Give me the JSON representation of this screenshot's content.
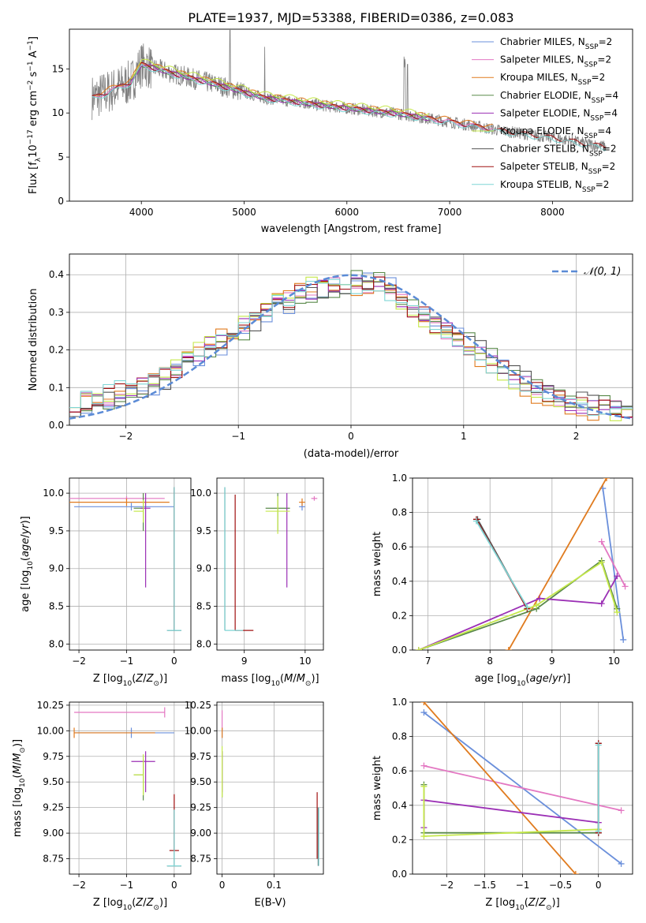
{
  "figure_title": "PLATE=1937, MJD=53388, FIBERID=0386, z=0.083",
  "colors": {
    "Chabrier MILES": "#6a8fdb",
    "Salpeter MILES": "#e377c2",
    "Kroupa MILES": "#e07b1f",
    "Chabrier ELODIE": "#5a8a4a",
    "Salpeter ELODIE": "#9b2fb5",
    "Kroupa ELODIE": "#c5e84a",
    "Chabrier STELIB": "#555555",
    "Salpeter STELIB": "#a01010",
    "Kroupa STELIB": "#7fd6d6",
    "data": "#808080"
  },
  "chart_data": [
    {
      "id": "spectrum",
      "type": "line",
      "xlabel": "wavelength [Angstrom, rest frame]",
      "ylabel_parts": [
        "Flux [f",
        "λ",
        "10",
        "−17",
        " erg cm",
        "−2",
        " s",
        "−1",
        " A",
        "−1",
        "]"
      ],
      "xlim": [
        3300,
        8780
      ],
      "ylim": [
        0,
        19.5
      ],
      "xticks": [
        4000,
        5000,
        6000,
        7000,
        8000
      ],
      "yticks": [
        0,
        5,
        10,
        15
      ],
      "legend_position": "upper right",
      "legend": [
        {
          "model": "Chabrier MILES",
          "nssp": "2",
          "sub": "SSP"
        },
        {
          "model": "Salpeter MILES",
          "nssp": "2",
          "sub": "SSP"
        },
        {
          "model": "Kroupa MILES",
          "nssp": "2",
          "sub": "SSP"
        },
        {
          "model": "Chabrier ELODIE",
          "nssp": "4",
          "sub": "SSP"
        },
        {
          "model": "Salpeter ELODIE",
          "nssp": "4",
          "sub": "SSP"
        },
        {
          "model": "Kroupa ELODIE",
          "nssp": "4",
          "sub": "SSP"
        },
        {
          "model": "Chabrier STELIB",
          "nssp": "2",
          "sub": "SSP"
        },
        {
          "model": "Salpeter STELIB",
          "nssp": "2",
          "sub": "SSP"
        },
        {
          "model": "Kroupa STELIB",
          "nssp": "2",
          "sub": "SSP"
        }
      ],
      "approx_continuum": {
        "wavelength": [
          3550,
          3700,
          3900,
          4000,
          4300,
          4800,
          5200,
          5800,
          6500,
          7000,
          7500,
          8000,
          8500
        ],
        "flux": [
          11.8,
          12.5,
          13.5,
          15.5,
          14.5,
          13.0,
          11.7,
          10.8,
          9.9,
          9.0,
          8.0,
          7.2,
          6.2
        ]
      }
    },
    {
      "id": "residuals",
      "type": "step",
      "xlabel": "(data-model)/error",
      "ylabel": "Normed distribution",
      "xlim": [
        -2.5,
        2.5
      ],
      "ylim": [
        0,
        0.455
      ],
      "xticks": [
        -2,
        -1,
        0,
        1,
        2
      ],
      "yticks": [
        0.0,
        0.1,
        0.2,
        0.3,
        0.4
      ],
      "legend": "𝒩(0, 1)",
      "legend_position": "upper right",
      "gaussian": {
        "mu": 0,
        "sigma": 1
      },
      "bin_width": 0.1,
      "base_hist": [
        0.06,
        0.065,
        0.07,
        0.075,
        0.085,
        0.095,
        0.105,
        0.115,
        0.13,
        0.15,
        0.165,
        0.19,
        0.21,
        0.22,
        0.24,
        0.26,
        0.28,
        0.3,
        0.32,
        0.33,
        0.35,
        0.36,
        0.365,
        0.37,
        0.375,
        0.38,
        0.375,
        0.38,
        0.36,
        0.33,
        0.31,
        0.29,
        0.27,
        0.25,
        0.23,
        0.21,
        0.19,
        0.17,
        0.15,
        0.13,
        0.11,
        0.095,
        0.08,
        0.07,
        0.06,
        0.055,
        0.05,
        0.045,
        0.04,
        0.035
      ]
    },
    {
      "id": "age-vs-Z",
      "type": "errorbar",
      "xlabel": "Z [log10(Z/Z☉)]",
      "ylabel": "age [log10(age/yr)]",
      "xlim": [
        -2.2,
        0.35
      ],
      "ylim": [
        7.92,
        10.2
      ],
      "xticks": [
        -2,
        -1,
        0
      ],
      "yticks": [
        8.0,
        8.5,
        9.0,
        9.5,
        10.0
      ],
      "points": [
        {
          "model": "Chabrier MILES",
          "x": -0.9,
          "xerr": [
            1.2,
            0.9
          ],
          "y": 9.82,
          "yerr": [
            0.05,
            0.05
          ]
        },
        {
          "model": "Salpeter MILES",
          "x": -1.0,
          "xerr": [
            1.2,
            0.8
          ],
          "y": 9.93,
          "yerr": [
            0.03,
            0.03
          ]
        },
        {
          "model": "Kroupa MILES",
          "x": -1.0,
          "xerr": [
            1.2,
            0.9
          ],
          "y": 9.88,
          "yerr": [
            0.05,
            0.05
          ]
        },
        {
          "model": "Chabrier ELODIE",
          "x": -0.65,
          "xerr": [
            0.2,
            0.0
          ],
          "y": 9.8,
          "yerr": [
            0.3,
            0.2
          ]
        },
        {
          "model": "Salpeter ELODIE",
          "x": -0.6,
          "xerr": [
            0.1,
            0.1
          ],
          "y": 9.8,
          "yerr": [
            1.05,
            0.2
          ]
        },
        {
          "model": "Kroupa ELODIE",
          "x": -0.65,
          "xerr": [
            0.2,
            0.0
          ],
          "y": 9.76,
          "yerr": [
            0.15,
            0.15
          ]
        },
        {
          "model": "Chabrier STELIB",
          "x": 0.0,
          "xerr": [
            0.15,
            0.15
          ],
          "y": 8.18,
          "yerr": [
            0.0,
            1.9
          ]
        },
        {
          "model": "Salpeter STELIB",
          "x": 0.0,
          "xerr": [
            0.0,
            0.0
          ],
          "y": 8.18,
          "yerr": [
            0.0,
            1.9
          ]
        },
        {
          "model": "Kroupa STELIB",
          "x": 0.0,
          "xerr": [
            0.15,
            0.15
          ],
          "y": 8.18,
          "yerr": [
            0.0,
            1.9
          ]
        }
      ]
    },
    {
      "id": "age-vs-mass",
      "type": "errorbar",
      "xlabel": "mass [log10(M/M☉)]",
      "ylabel": "",
      "xlim": [
        8.55,
        10.3
      ],
      "ylim": [
        7.92,
        10.2
      ],
      "xticks": [
        9,
        10
      ],
      "yticks": [
        8.0,
        8.5,
        9.0,
        9.5,
        10.0
      ],
      "points": [
        {
          "model": "Chabrier MILES",
          "x": 9.95,
          "xerr": [
            0.05,
            0.05
          ],
          "y": 9.82,
          "yerr": [
            0.05,
            0.05
          ]
        },
        {
          "model": "Salpeter MILES",
          "x": 10.15,
          "xerr": [
            0.05,
            0.05
          ],
          "y": 9.93,
          "yerr": [
            0.03,
            0.03
          ]
        },
        {
          "model": "Kroupa MILES",
          "x": 9.95,
          "xerr": [
            0.05,
            0.05
          ],
          "y": 9.88,
          "yerr": [
            0.05,
            0.05
          ]
        },
        {
          "model": "Chabrier ELODIE",
          "x": 9.55,
          "xerr": [
            0.2,
            0.2
          ],
          "y": 9.8,
          "yerr": [
            0.3,
            0.2
          ]
        },
        {
          "model": "Salpeter ELODIE",
          "x": 9.7,
          "xerr": [
            0.0,
            0.0
          ],
          "y": 9.8,
          "yerr": [
            1.05,
            0.2
          ]
        },
        {
          "model": "Kroupa ELODIE",
          "x": 9.55,
          "xerr": [
            0.2,
            0.2
          ],
          "y": 9.76,
          "yerr": [
            0.3,
            0.2
          ]
        },
        {
          "model": "Chabrier STELIB",
          "x": 8.68,
          "xerr": [
            0.0,
            0.0
          ],
          "y": 8.18,
          "yerr": [
            0.0,
            1.9
          ]
        },
        {
          "model": "Salpeter STELIB",
          "x": 8.85,
          "xerr": [
            0.0,
            0.3
          ],
          "y": 8.18,
          "yerr": [
            0.0,
            1.8
          ]
        },
        {
          "model": "Kroupa STELIB",
          "x": 8.68,
          "xerr": [
            0.0,
            0.3
          ],
          "y": 8.18,
          "yerr": [
            0.0,
            1.9
          ]
        }
      ]
    },
    {
      "id": "weight-vs-age",
      "type": "line",
      "xlabel": "age [log10(age/yr)]",
      "ylabel": "mass weight",
      "xlim": [
        6.75,
        10.3
      ],
      "ylim": [
        0,
        1.0
      ],
      "xticks": [
        7,
        8,
        9,
        10
      ],
      "yticks": [
        0.0,
        0.2,
        0.4,
        0.6,
        0.8,
        1.0
      ],
      "series": [
        {
          "model": "Chabrier MILES",
          "x": [
            9.82,
            10.15
          ],
          "y": [
            0.94,
            0.06
          ]
        },
        {
          "model": "Salpeter MILES",
          "x": [
            9.8,
            10.18
          ],
          "y": [
            0.63,
            0.37
          ]
        },
        {
          "model": "Kroupa MILES",
          "x": [
            8.3,
            9.88
          ],
          "y": [
            0.0,
            1.0
          ]
        },
        {
          "model": "Chabrier ELODIE",
          "x": [
            6.85,
            8.75,
            9.8,
            10.05
          ],
          "y": [
            0.0,
            0.24,
            0.52,
            0.24
          ]
        },
        {
          "model": "Salpeter ELODIE",
          "x": [
            6.85,
            8.8,
            9.8,
            10.05
          ],
          "y": [
            0.0,
            0.3,
            0.27,
            0.43
          ]
        },
        {
          "model": "Kroupa ELODIE",
          "x": [
            6.85,
            8.75,
            9.8,
            10.05
          ],
          "y": [
            0.0,
            0.26,
            0.51,
            0.22
          ]
        },
        {
          "model": "Chabrier STELIB",
          "x": [
            7.8,
            8.6
          ],
          "y": [
            0.76,
            0.24
          ]
        },
        {
          "model": "Salpeter STELIB",
          "x": [
            7.78,
            8.6
          ],
          "y": [
            0.76,
            0.24
          ]
        },
        {
          "model": "Kroupa STELIB",
          "x": [
            7.78,
            8.6
          ],
          "y": [
            0.75,
            0.25
          ]
        }
      ]
    },
    {
      "id": "mass-vs-Z",
      "type": "errorbar",
      "xlabel": "Z [log10(Z/Z☉)]",
      "ylabel": "mass [log10(M/M☉)]",
      "xlim": [
        -2.2,
        0.35
      ],
      "ylim": [
        8.6,
        10.28
      ],
      "xticks": [
        -2,
        -1,
        0
      ],
      "yticks": [
        8.75,
        9.0,
        9.25,
        9.5,
        9.75,
        10.0,
        10.25
      ],
      "points": [
        {
          "model": "Chabrier MILES",
          "x": -0.9,
          "xerr": [
            1.2,
            0.9
          ],
          "y": 9.98,
          "yerr": [
            0.05,
            0.05
          ]
        },
        {
          "model": "Salpeter MILES",
          "x": -0.2,
          "xerr": [
            1.9,
            0.0
          ],
          "y": 10.18,
          "yerr": [
            0.05,
            0.05
          ]
        },
        {
          "model": "Kroupa MILES",
          "x": -2.1,
          "xerr": [
            0.0,
            1.7
          ],
          "y": 9.98,
          "yerr": [
            0.05,
            0.05
          ]
        },
        {
          "model": "Chabrier ELODIE",
          "x": -0.65,
          "xerr": [
            0.2,
            0.0
          ],
          "y": 9.57,
          "yerr": [
            0.25,
            0.15
          ]
        },
        {
          "model": "Salpeter ELODIE",
          "x": -0.6,
          "xerr": [
            0.3,
            0.2
          ],
          "y": 9.7,
          "yerr": [
            0.3,
            0.1
          ]
        },
        {
          "model": "Kroupa ELODIE",
          "x": -0.65,
          "xerr": [
            0.2,
            0.0
          ],
          "y": 9.57,
          "yerr": [
            0.2,
            0.2
          ]
        },
        {
          "model": "Chabrier STELIB",
          "x": 0.0,
          "xerr": [
            0.15,
            0.15
          ],
          "y": 8.68,
          "yerr": [
            0.0,
            0.55
          ]
        },
        {
          "model": "Salpeter STELIB",
          "x": 0.0,
          "xerr": [
            0.1,
            0.1
          ],
          "y": 8.83,
          "yerr": [
            0.0,
            0.55
          ]
        },
        {
          "model": "Kroupa STELIB",
          "x": 0.0,
          "xerr": [
            0.15,
            0.15
          ],
          "y": 8.68,
          "yerr": [
            0.0,
            0.55
          ]
        }
      ]
    },
    {
      "id": "mass-vs-EBV",
      "type": "errorbar",
      "xlabel": "E(B-V)",
      "ylabel": "",
      "xlim": [
        -0.01,
        0.195
      ],
      "ylim": [
        8.6,
        10.28
      ],
      "xticks": [
        0.0,
        0.1
      ],
      "yticks": [
        8.75,
        9.0,
        9.25,
        9.5,
        9.75,
        10.0,
        10.25
      ],
      "points": [
        {
          "model": "Chabrier MILES",
          "x": 0.0,
          "xerr": [
            0,
            0
          ],
          "y": 9.98,
          "yerr": [
            0.05,
            0.05
          ]
        },
        {
          "model": "Salpeter MILES",
          "x": 0.0,
          "xerr": [
            0,
            0
          ],
          "y": 10.1,
          "yerr": [
            0.1,
            0.1
          ]
        },
        {
          "model": "Kroupa MILES",
          "x": 0.0,
          "xerr": [
            0,
            0
          ],
          "y": 9.98,
          "yerr": [
            0.05,
            0.05
          ]
        },
        {
          "model": "Chabrier ELODIE",
          "x": 0.0,
          "xerr": [
            0,
            0
          ],
          "y": 9.6,
          "yerr": [
            0.25,
            0.2
          ]
        },
        {
          "model": "Salpeter ELODIE",
          "x": 0.0,
          "xerr": [
            0,
            0
          ],
          "y": 9.7,
          "yerr": [
            0.3,
            0.1
          ]
        },
        {
          "model": "Kroupa ELODIE",
          "x": 0.0,
          "xerr": [
            0,
            0
          ],
          "y": 9.6,
          "yerr": [
            0.25,
            0.25
          ]
        },
        {
          "model": "Chabrier STELIB",
          "x": 0.185,
          "xerr": [
            0,
            0
          ],
          "y": 8.95,
          "yerr": [
            0.27,
            0.3
          ]
        },
        {
          "model": "Salpeter STELIB",
          "x": 0.183,
          "xerr": [
            0,
            0
          ],
          "y": 9.1,
          "yerr": [
            0.35,
            0.3
          ]
        },
        {
          "model": "Kroupa STELIB",
          "x": 0.186,
          "xerr": [
            0,
            0
          ],
          "y": 8.95,
          "yerr": [
            0.27,
            0.3
          ]
        }
      ]
    },
    {
      "id": "weight-vs-Z",
      "type": "line",
      "xlabel": "Z [log10(Z/Z☉)]",
      "ylabel": "mass weight",
      "xlim": [
        -2.45,
        0.45
      ],
      "ylim": [
        0,
        1.0
      ],
      "xticks": [
        -2.0,
        -1.5,
        -1.0,
        -0.5,
        0.0
      ],
      "yticks": [
        0.0,
        0.2,
        0.4,
        0.6,
        0.8,
        1.0
      ],
      "series": [
        {
          "model": "Chabrier MILES",
          "x": [
            -2.3,
            0.3
          ],
          "y": [
            0.94,
            0.06
          ]
        },
        {
          "model": "Salpeter MILES",
          "x": [
            -2.3,
            0.3
          ],
          "y": [
            0.63,
            0.37
          ]
        },
        {
          "model": "Kroupa MILES",
          "x": [
            -2.3,
            -0.3
          ],
          "y": [
            1.0,
            0.0
          ]
        },
        {
          "model": "Chabrier ELODIE",
          "x": [
            -2.3,
            -2.3,
            0.0,
            0.0
          ],
          "y": [
            0.52,
            0.24,
            0.24,
            0.24
          ]
        },
        {
          "model": "Salpeter ELODIE",
          "x": [
            -2.3,
            -2.3,
            0.0,
            0.0
          ],
          "y": [
            0.27,
            0.43,
            0.3,
            0.3
          ]
        },
        {
          "model": "Kroupa ELODIE",
          "x": [
            -2.3,
            -2.3,
            0.0,
            0.0
          ],
          "y": [
            0.51,
            0.22,
            0.26,
            0.26
          ]
        },
        {
          "model": "Chabrier STELIB",
          "x": [
            0.0,
            0.0
          ],
          "y": [
            0.76,
            0.24
          ]
        },
        {
          "model": "Salpeter STELIB",
          "x": [
            0.0,
            0.0
          ],
          "y": [
            0.76,
            0.24
          ]
        },
        {
          "model": "Kroupa STELIB",
          "x": [
            0.0,
            0.0
          ],
          "y": [
            0.75,
            0.25
          ]
        }
      ]
    }
  ]
}
